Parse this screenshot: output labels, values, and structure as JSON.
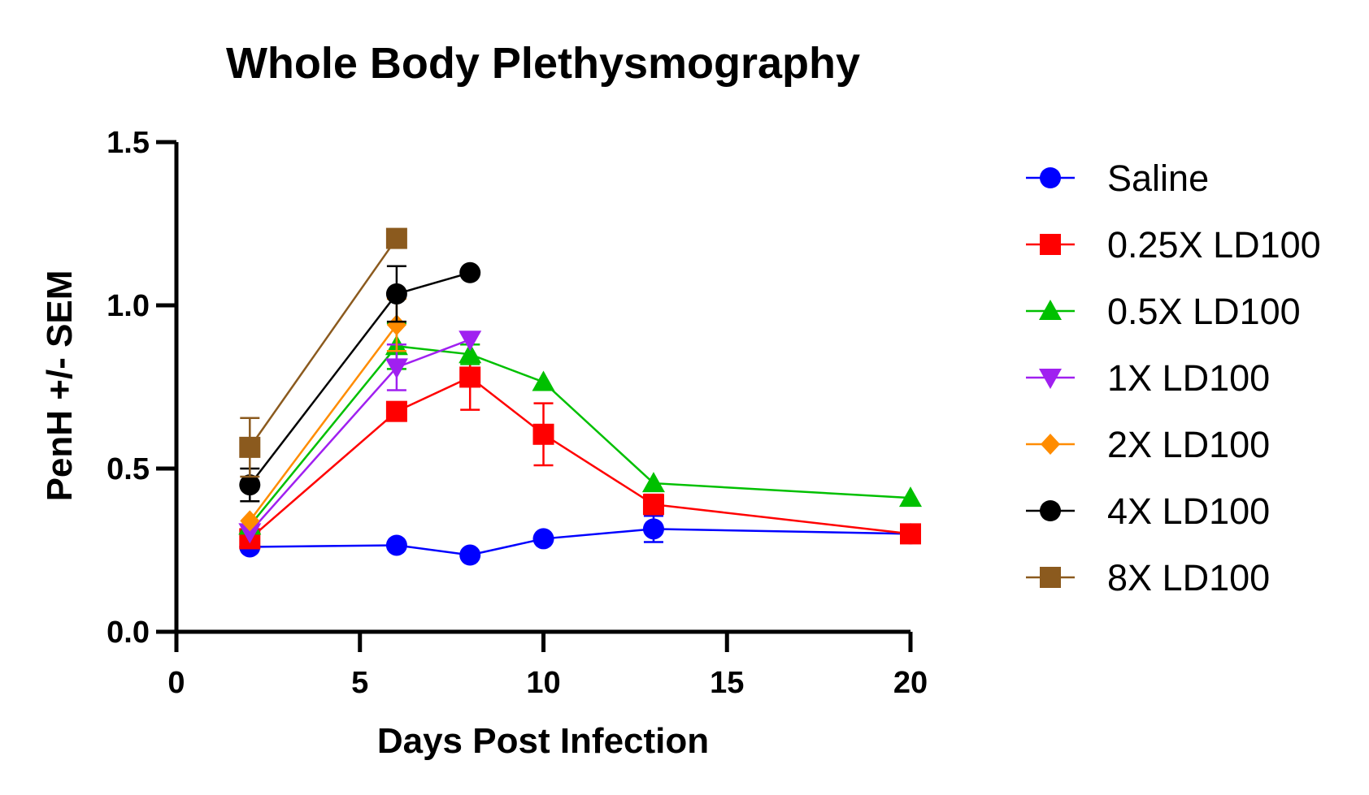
{
  "chart_data": {
    "type": "line",
    "title": "Whole Body Plethysmography",
    "xlabel": "Days Post Infection",
    "ylabel": "PenH +/- SEM",
    "xlim": [
      0,
      20
    ],
    "ylim": [
      0,
      1.5
    ],
    "x_ticks": [
      "0",
      "5",
      "10",
      "15",
      "20"
    ],
    "y_ticks": [
      "0.0",
      "0.5",
      "1.0",
      "1.5"
    ],
    "grid": false,
    "legend_position": "right",
    "series": [
      {
        "name": "Saline",
        "color": "#0000ff",
        "marker": "circle",
        "points": [
          {
            "x": 2,
            "y": 0.26,
            "err": 0.01
          },
          {
            "x": 6,
            "y": 0.265,
            "err": 0.01
          },
          {
            "x": 8,
            "y": 0.235,
            "err": 0.01
          },
          {
            "x": 10,
            "y": 0.285,
            "err": 0.01
          },
          {
            "x": 13,
            "y": 0.315,
            "err": 0.04
          },
          {
            "x": 20,
            "y": 0.3,
            "err": 0.01
          }
        ]
      },
      {
        "name": "0.25X LD100",
        "color": "#ff0000",
        "marker": "square",
        "points": [
          {
            "x": 2,
            "y": 0.285,
            "err": 0.01
          },
          {
            "x": 6,
            "y": 0.675,
            "err": 0.02
          },
          {
            "x": 8,
            "y": 0.78,
            "err": 0.1
          },
          {
            "x": 10,
            "y": 0.605,
            "err": 0.095
          },
          {
            "x": 13,
            "y": 0.39,
            "err": 0.03
          },
          {
            "x": 20,
            "y": 0.3,
            "err": 0.01
          }
        ]
      },
      {
        "name": "0.5X LD100",
        "color": "#00c000",
        "marker": "triangle-up",
        "points": [
          {
            "x": 2,
            "y": 0.325,
            "err": 0.01
          },
          {
            "x": 6,
            "y": 0.875,
            "err": 0.07
          },
          {
            "x": 8,
            "y": 0.85,
            "err": 0.03
          },
          {
            "x": 10,
            "y": 0.765,
            "err": 0.01
          },
          {
            "x": 13,
            "y": 0.455,
            "err": 0.01
          },
          {
            "x": 20,
            "y": 0.41,
            "err": 0.01
          }
        ]
      },
      {
        "name": "1X LD100",
        "color": "#a020f0",
        "marker": "triangle-down",
        "points": [
          {
            "x": 2,
            "y": 0.305,
            "err": 0.01
          },
          {
            "x": 6,
            "y": 0.81,
            "err": 0.07
          },
          {
            "x": 8,
            "y": 0.895,
            "err": 0.01
          }
        ]
      },
      {
        "name": "2X LD100",
        "color": "#ff8c00",
        "marker": "diamond",
        "points": [
          {
            "x": 2,
            "y": 0.34,
            "err": 0.01
          },
          {
            "x": 6,
            "y": 0.94,
            "err": 0.08
          }
        ]
      },
      {
        "name": "4X LD100",
        "color": "#000000",
        "marker": "circle",
        "points": [
          {
            "x": 2,
            "y": 0.45,
            "err": 0.05
          },
          {
            "x": 6,
            "y": 1.035,
            "err": 0.085
          },
          {
            "x": 8,
            "y": 1.1,
            "err": 0.01
          }
        ]
      },
      {
        "name": "8X LD100",
        "color": "#8b5a1e",
        "marker": "square",
        "points": [
          {
            "x": 2,
            "y": 0.565,
            "err": 0.09
          },
          {
            "x": 6,
            "y": 1.205,
            "err": 0.01
          }
        ]
      }
    ]
  }
}
